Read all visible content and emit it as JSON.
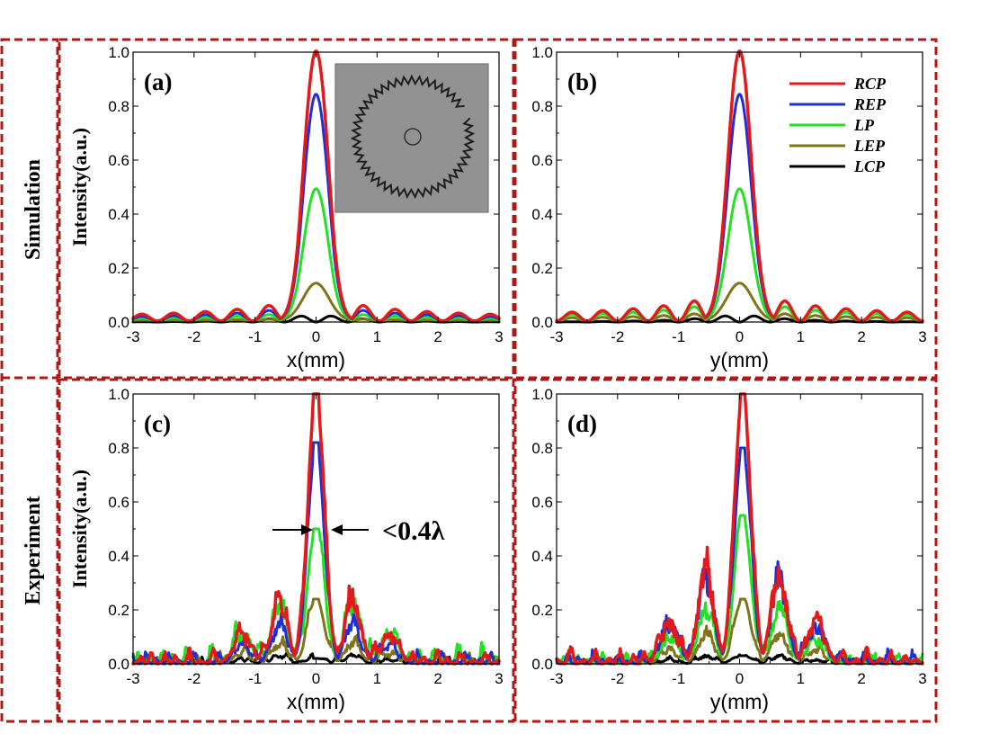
{
  "rows": [
    {
      "key": "sim",
      "label": "Simulation"
    },
    {
      "key": "exp",
      "label": "Experiment"
    }
  ],
  "legend": [
    {
      "label": "RCP",
      "color": "#e31a1c"
    },
    {
      "label": "REP",
      "color": "#1f2fd6"
    },
    {
      "label": "LP",
      "color": "#22e022"
    },
    {
      "label": "LEP",
      "color": "#7f7419"
    },
    {
      "label": "LCP",
      "color": "#000000"
    }
  ],
  "annotation": {
    "text": "<0.4λ"
  },
  "inset": {
    "description_icon": "gear-ring-photo-icon"
  },
  "chart_data": [
    {
      "panel": "(a)",
      "type": "line",
      "xlabel": "x(mm)",
      "ylabel": "Intensity(a.u.)",
      "xlim": [
        -3,
        3
      ],
      "ylim": [
        0,
        1.0
      ],
      "xticks": [
        -3,
        -2,
        -1,
        0,
        1,
        2,
        3
      ],
      "yticks": [
        "0.0",
        "0.2",
        "0.4",
        "0.6",
        "0.8",
        "1.0"
      ],
      "mode": "sim",
      "center": 0,
      "series": [
        {
          "name": "RCP",
          "peak": 1.0,
          "side": 0.11,
          "width": 0.19,
          "period": 0.52
        },
        {
          "name": "REP",
          "peak": 0.84,
          "side": 0.075,
          "width": 0.19,
          "period": 0.52
        },
        {
          "name": "LP",
          "peak": 0.49,
          "side": 0.045,
          "width": 0.19,
          "period": 0.52
        },
        {
          "name": "LEP",
          "peak": 0.14,
          "side": 0.012,
          "width": 0.21,
          "period": 0.52
        },
        {
          "name": "LCP",
          "peak": 0.0,
          "side": 0.03,
          "width": 0.2,
          "period": 0.52
        }
      ]
    },
    {
      "panel": "(b)",
      "type": "line",
      "xlabel": "y(mm)",
      "ylabel": "",
      "xlim": [
        -3,
        3
      ],
      "ylim": [
        0,
        1.0
      ],
      "xticks": [
        -3,
        -2,
        -1,
        0,
        1,
        2,
        3
      ],
      "yticks": [
        "0.0",
        "0.2",
        "0.4",
        "0.6",
        "0.8",
        "1.0"
      ],
      "mode": "sim",
      "center": 0,
      "series": [
        {
          "name": "RCP",
          "peak": 1.0,
          "side": 0.14,
          "width": 0.19,
          "period": 0.5
        },
        {
          "name": "REP",
          "peak": 0.84,
          "side": 0.14,
          "width": 0.19,
          "period": 0.5
        },
        {
          "name": "LP",
          "peak": 0.49,
          "side": 0.1,
          "width": 0.19,
          "period": 0.5
        },
        {
          "name": "LEP",
          "peak": 0.14,
          "side": 0.05,
          "width": 0.21,
          "period": 0.5
        },
        {
          "name": "LCP",
          "peak": 0.0,
          "side": 0.03,
          "width": 0.2,
          "period": 0.5
        }
      ]
    },
    {
      "panel": "(c)",
      "type": "line",
      "xlabel": "x(mm)",
      "ylabel": "Intensity(a.u.)",
      "xlim": [
        -3,
        3
      ],
      "ylim": [
        0,
        1.0
      ],
      "xticks": [
        -3,
        -2,
        -1,
        0,
        1,
        2,
        3
      ],
      "yticks": [
        "0.0",
        "0.2",
        "0.4",
        "0.6",
        "0.8",
        "1.0"
      ],
      "mode": "exp",
      "center": 0.0,
      "series": [
        {
          "name": "RCP",
          "peak": 1.0,
          "width": 0.13,
          "side": 0.26,
          "noise": 0.07,
          "seed": 11
        },
        {
          "name": "REP",
          "peak": 0.82,
          "width": 0.13,
          "side": 0.16,
          "noise": 0.06,
          "seed": 23
        },
        {
          "name": "LP",
          "peak": 0.5,
          "width": 0.13,
          "side": 0.25,
          "noise": 0.09,
          "seed": 37
        },
        {
          "name": "LEP",
          "peak": 0.24,
          "width": 0.13,
          "side": 0.08,
          "noise": 0.05,
          "seed": 41
        },
        {
          "name": "LCP",
          "peak": 0.02,
          "width": 0.15,
          "side": 0.03,
          "noise": 0.03,
          "seed": 53
        }
      ]
    },
    {
      "panel": "(d)",
      "type": "line",
      "xlabel": "y(mm)",
      "ylabel": "",
      "xlim": [
        -3,
        3
      ],
      "ylim": [
        0,
        1.0
      ],
      "xticks": [
        -3,
        -2,
        -1,
        0,
        1,
        2,
        3
      ],
      "yticks": [
        "0.0",
        "0.2",
        "0.4",
        "0.6",
        "0.8",
        "1.0"
      ],
      "mode": "exp",
      "center": 0.05,
      "series": [
        {
          "name": "RCP",
          "peak": 1.0,
          "width": 0.13,
          "side": 0.38,
          "noise": 0.07,
          "seed": 61
        },
        {
          "name": "REP",
          "peak": 0.8,
          "width": 0.13,
          "side": 0.36,
          "noise": 0.06,
          "seed": 67
        },
        {
          "name": "LP",
          "peak": 0.55,
          "width": 0.13,
          "side": 0.23,
          "noise": 0.05,
          "seed": 71
        },
        {
          "name": "LEP",
          "peak": 0.24,
          "width": 0.13,
          "side": 0.12,
          "noise": 0.04,
          "seed": 79
        },
        {
          "name": "LCP",
          "peak": 0.03,
          "width": 0.15,
          "side": 0.03,
          "noise": 0.02,
          "seed": 83
        }
      ]
    }
  ]
}
